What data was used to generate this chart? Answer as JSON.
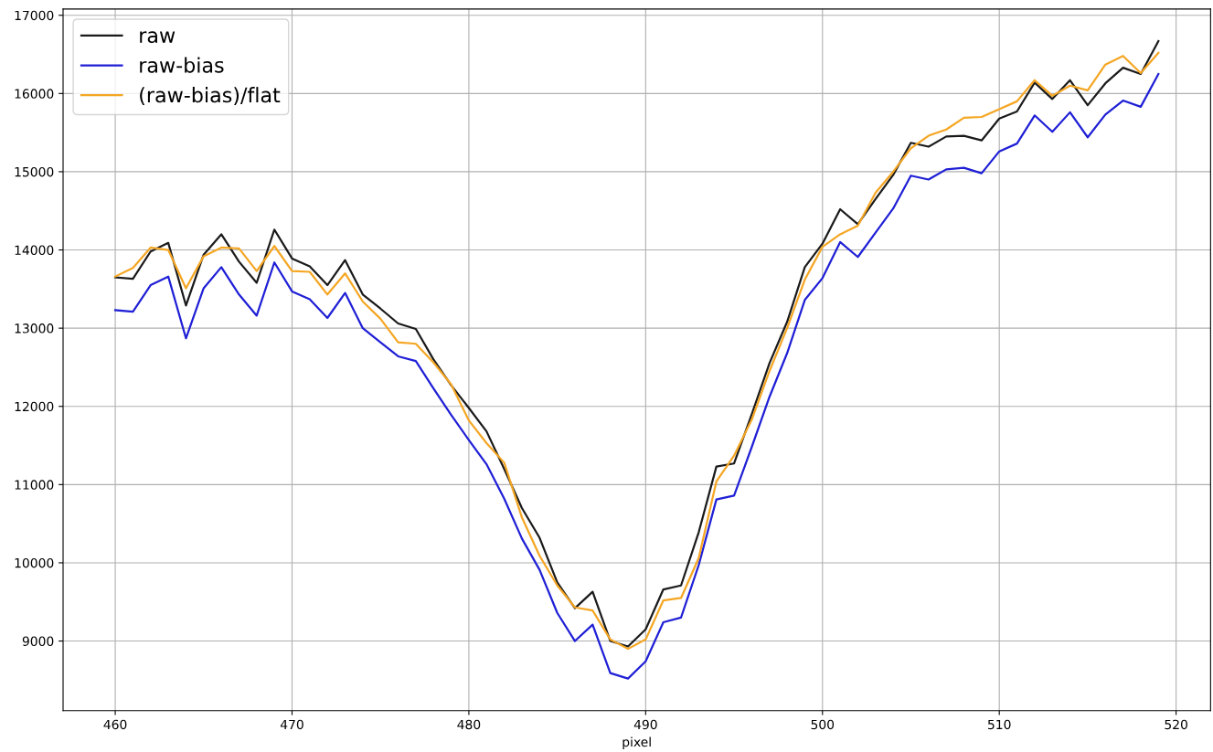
{
  "chart_data": {
    "type": "line",
    "xlabel": "pixel",
    "x": [
      460,
      461,
      462,
      463,
      464,
      465,
      466,
      467,
      468,
      469,
      470,
      471,
      472,
      473,
      474,
      475,
      476,
      477,
      478,
      479,
      480,
      481,
      482,
      483,
      484,
      485,
      486,
      487,
      488,
      489,
      490,
      491,
      492,
      493,
      494,
      495,
      496,
      497,
      498,
      499,
      500,
      501,
      502,
      503,
      504,
      505,
      506,
      507,
      508,
      509,
      510,
      511,
      512,
      513,
      514,
      515,
      516,
      517,
      518,
      519
    ],
    "series": [
      {
        "name": "raw",
        "color": "#1a1a1a",
        "values": [
          13650,
          13630,
          13980,
          14090,
          13290,
          13940,
          14200,
          13850,
          13580,
          14260,
          13890,
          13790,
          13550,
          13870,
          13430,
          13250,
          13060,
          12990,
          12600,
          12270,
          11980,
          11680,
          11200,
          10700,
          10320,
          9750,
          9420,
          9630,
          9000,
          8930,
          9150,
          9660,
          9710,
          10390,
          11230,
          11270,
          11900,
          12550,
          13080,
          13780,
          14080,
          14520,
          14330,
          14650,
          14960,
          15370,
          15320,
          15450,
          15460,
          15400,
          15680,
          15770,
          16140,
          15930,
          16170,
          15850,
          16130,
          16330,
          16250,
          16670
        ]
      },
      {
        "name": "raw-bias",
        "color": "#1f1fd6",
        "values": [
          13230,
          13210,
          13550,
          13660,
          12870,
          13510,
          13780,
          13430,
          13160,
          13840,
          13470,
          13370,
          13130,
          13450,
          13000,
          12820,
          12640,
          12580,
          12230,
          11890,
          11570,
          11260,
          10820,
          10310,
          9910,
          9360,
          9000,
          9210,
          8590,
          8520,
          8740,
          9240,
          9300,
          9970,
          10810,
          10860,
          11480,
          12120,
          12680,
          13360,
          13640,
          14100,
          13910,
          14220,
          14530,
          14950,
          14900,
          15030,
          15050,
          14980,
          15260,
          15360,
          15720,
          15510,
          15760,
          15440,
          15730,
          15910,
          15830,
          16250
        ]
      },
      {
        "name": "(raw-bias)/flat",
        "color": "#f5a623",
        "values": [
          13660,
          13770,
          14030,
          14000,
          13510,
          13920,
          14030,
          14020,
          13730,
          14050,
          13730,
          13720,
          13430,
          13700,
          13340,
          13120,
          12820,
          12800,
          12560,
          12280,
          11820,
          11530,
          11280,
          10580,
          10090,
          9710,
          9430,
          9390,
          9020,
          8900,
          9020,
          9520,
          9550,
          10060,
          11040,
          11370,
          11830,
          12450,
          13000,
          13620,
          14040,
          14200,
          14310,
          14730,
          15000,
          15300,
          15460,
          15540,
          15690,
          15700,
          15800,
          15900,
          16170,
          15970,
          16100,
          16040,
          16370,
          16480,
          16260,
          16520
        ]
      }
    ],
    "xlim": [
      457.05,
      521.95
    ],
    "xticks": [
      460,
      470,
      480,
      490,
      500,
      510,
      520
    ],
    "ylim": [
      8110,
      17080
    ],
    "yticks": [
      9000,
      10000,
      11000,
      12000,
      13000,
      14000,
      15000,
      16000,
      17000
    ],
    "grid": true,
    "legend": "top left"
  }
}
